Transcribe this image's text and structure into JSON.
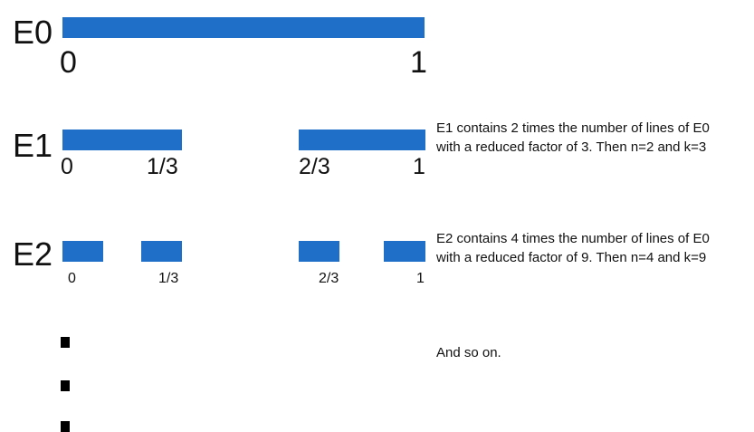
{
  "stages": {
    "e0": {
      "label": "E0",
      "ticks": [
        "0",
        "1"
      ]
    },
    "e1": {
      "label": "E1",
      "ticks": [
        "0",
        "1/3",
        "2/3",
        "1"
      ],
      "description_line1": "E1 contains 2 times the number of lines of E0",
      "description_line2": "with a reduced factor of 3. Then n=2 and k=3"
    },
    "e2": {
      "label": "E2",
      "ticks": [
        "0",
        "1/3",
        "2/3",
        "1"
      ],
      "description_line1": "E2 contains 4 times the number of lines of E0",
      "description_line2": "with a reduced factor of 9. Then n=4 and k=9"
    }
  },
  "continuation": {
    "text": "And so on."
  },
  "colors": {
    "bar": "#1f6fc8",
    "text": "#111111",
    "dot": "#000000"
  }
}
